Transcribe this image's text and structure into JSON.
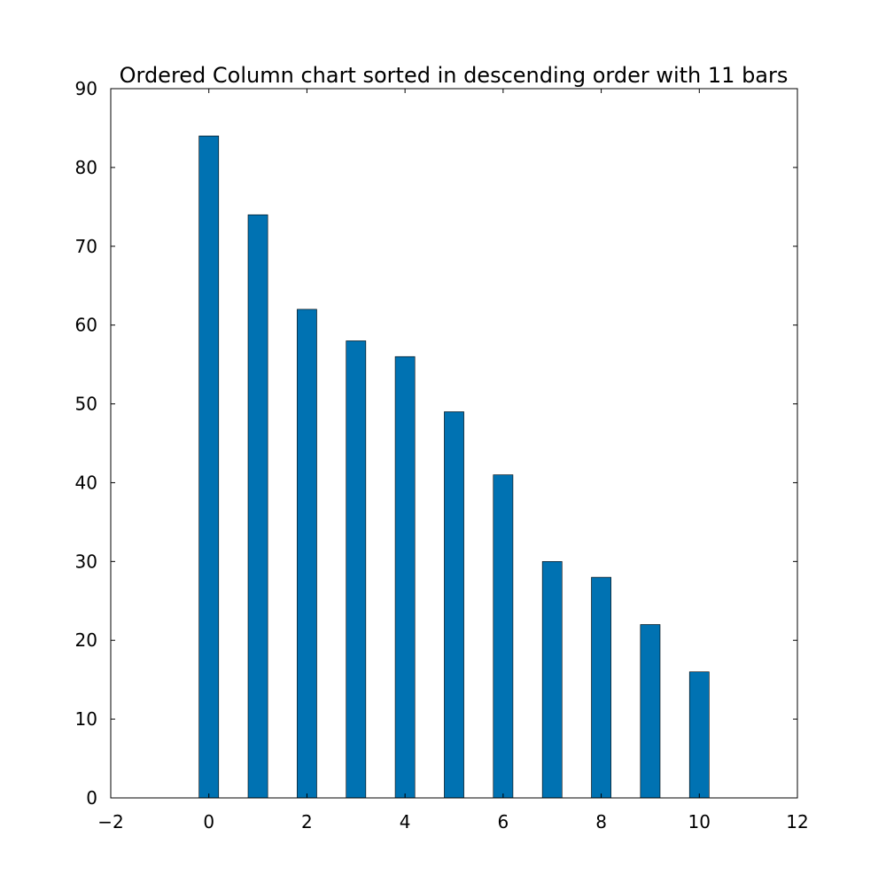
{
  "chart_data": {
    "type": "bar",
    "title": "Ordered Column chart sorted in descending order with 11 bars",
    "xlabel": "",
    "ylabel": "",
    "x": [
      0,
      1,
      2,
      3,
      4,
      5,
      6,
      7,
      8,
      9,
      10
    ],
    "values": [
      84,
      74,
      62,
      58,
      56,
      49,
      41,
      30,
      28,
      22,
      16
    ],
    "xlim": [
      -2,
      12
    ],
    "ylim": [
      0,
      90
    ],
    "xticks": [
      -2,
      0,
      2,
      4,
      6,
      8,
      10,
      12
    ],
    "xtick_labels": [
      "−2",
      "0",
      "2",
      "4",
      "6",
      "8",
      "10",
      "12"
    ],
    "yticks": [
      0,
      10,
      20,
      30,
      40,
      50,
      60,
      70,
      80,
      90
    ],
    "ytick_labels": [
      "0",
      "10",
      "20",
      "30",
      "40",
      "50",
      "60",
      "70",
      "80",
      "90"
    ],
    "bar_width": 0.4,
    "bar_color": "#0072b2",
    "grid": false,
    "legend": "none"
  }
}
